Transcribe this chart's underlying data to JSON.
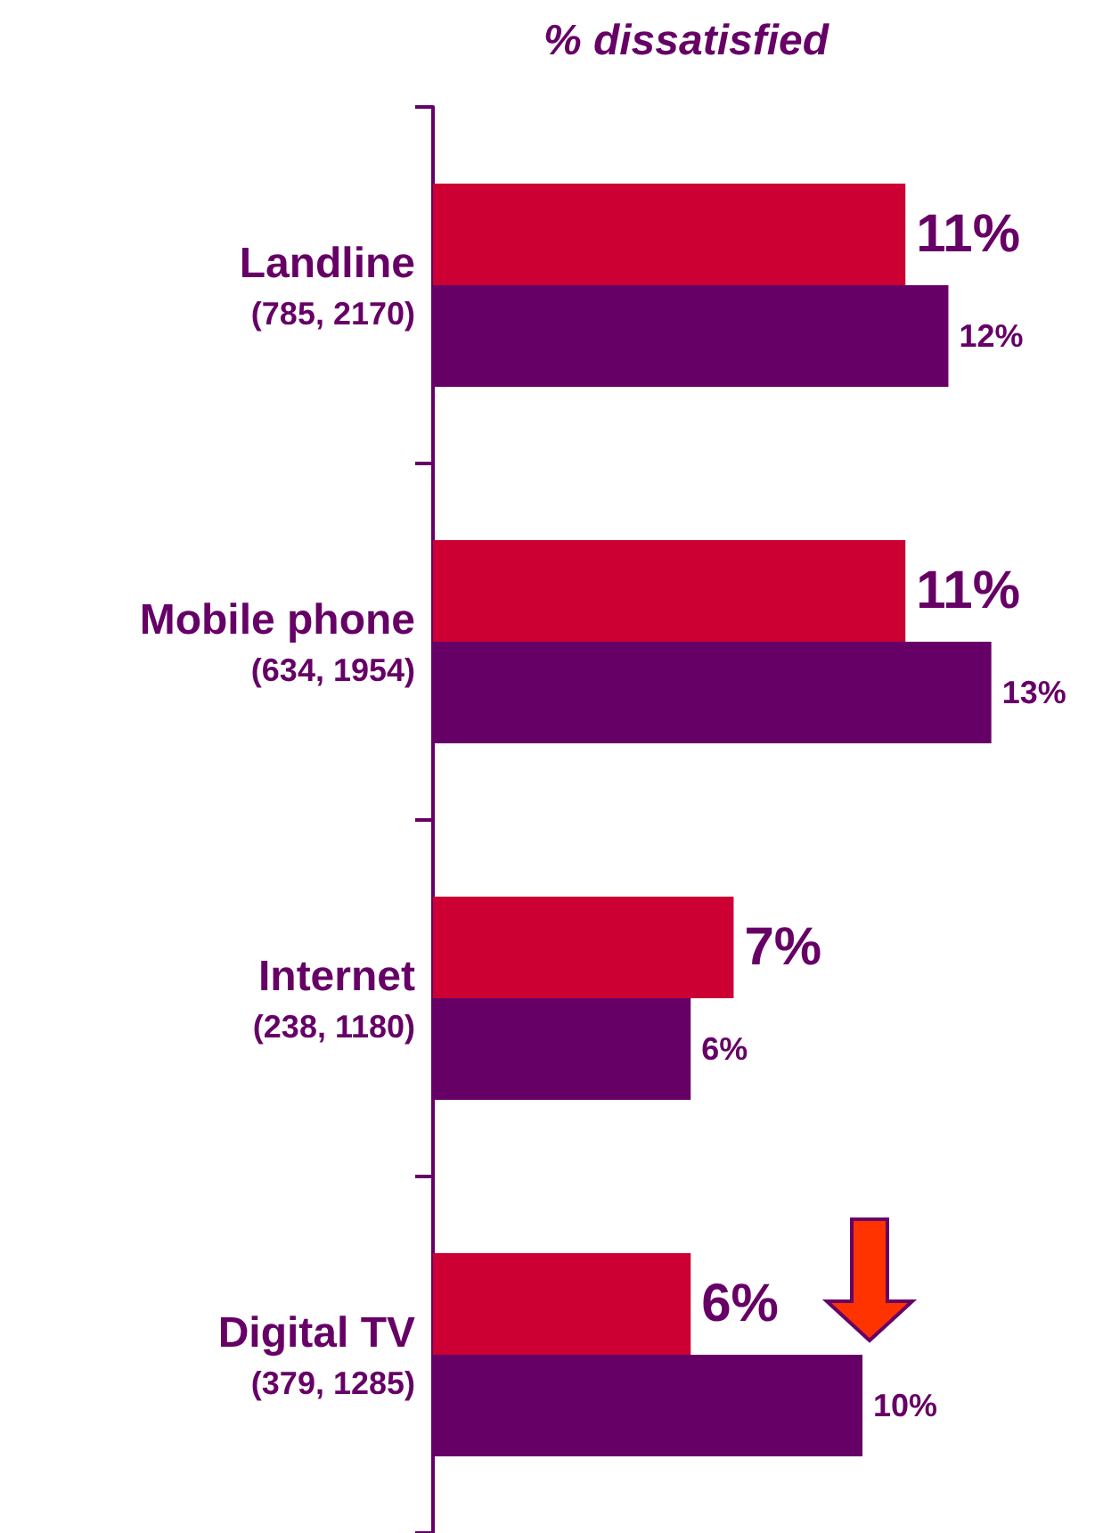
{
  "chart_data": {
    "type": "bar",
    "orientation": "horizontal",
    "title": "% dissatisfied",
    "categories": [
      "Landline\n(785, 2170)",
      "Mobile phone\n(634, 1954)",
      "Internet\n(238, 1180)",
      "Digital TV\n(379, 1285)"
    ],
    "series": [
      {
        "color": "#cc0033",
        "values": [
          11,
          11,
          7,
          6
        ],
        "value_labels": [
          "11%",
          "11%",
          "7%",
          "6%"
        ]
      },
      {
        "color": "#660066",
        "values": [
          12,
          13,
          6,
          10
        ],
        "value_labels": [
          "12%",
          "13%",
          "6%",
          "10%"
        ]
      }
    ]
  }
}
